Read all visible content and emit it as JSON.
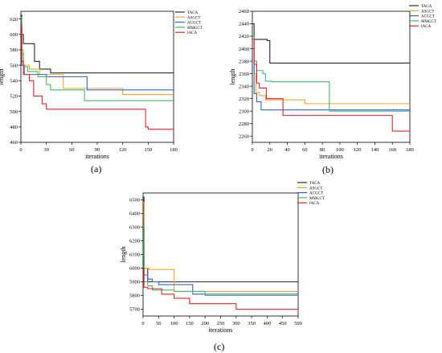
{
  "colors": {
    "TACA": "#2b2b2b",
    "ASGCT": "#f5a623",
    "ACGCT": "#2f66d6",
    "MMGCT": "#3dbb6a",
    "IACA": "#e8202a"
  },
  "chart_data": [
    {
      "type": "line",
      "caption": "(a)",
      "xlabel": "iterations",
      "ylabel": "length",
      "xlim": [
        0,
        180
      ],
      "ylim": [
        460,
        630
      ],
      "xticks": [
        0,
        30,
        60,
        90,
        120,
        150,
        180
      ],
      "yticks": [
        460,
        480,
        500,
        520,
        540,
        560,
        580,
        600,
        620
      ],
      "legend": "top-right",
      "grid": false,
      "series": [
        {
          "name": "TACA",
          "x": [
            0,
            1,
            3,
            10,
            16,
            22,
            35,
            180
          ],
          "y": [
            625,
            600,
            588,
            588,
            565,
            555,
            550,
            550
          ]
        },
        {
          "name": "ASGCT",
          "x": [
            0,
            1,
            3,
            10,
            22,
            45,
            50,
            75,
            120,
            180
          ],
          "y": [
            618,
            580,
            560,
            555,
            548,
            548,
            530,
            530,
            522,
            522
          ]
        },
        {
          "name": "ACGCT",
          "x": [
            0,
            1,
            4,
            20,
            30,
            75,
            78,
            180
          ],
          "y": [
            600,
            560,
            548,
            548,
            545,
            545,
            528,
            528
          ]
        },
        {
          "name": "MMGCT",
          "x": [
            0,
            1,
            3,
            8,
            20,
            30,
            35,
            75,
            180
          ],
          "y": [
            622,
            575,
            558,
            552,
            545,
            535,
            528,
            514,
            514
          ]
        },
        {
          "name": "IACA",
          "x": [
            0,
            1,
            3,
            10,
            15,
            25,
            30,
            145,
            147,
            150,
            180
          ],
          "y": [
            610,
            565,
            548,
            540,
            520,
            510,
            503,
            503,
            480,
            477,
            477
          ]
        }
      ]
    },
    {
      "type": "line",
      "caption": "(b)",
      "xlabel": "iterations",
      "ylabel": "length",
      "xlim": [
        0,
        180
      ],
      "ylim": [
        2250,
        2460
      ],
      "xticks": [
        0,
        20,
        40,
        60,
        80,
        100,
        120,
        140,
        160,
        180
      ],
      "yticks": [
        2260,
        2280,
        2300,
        2320,
        2340,
        2360,
        2380,
        2400,
        2420,
        2440,
        2460
      ],
      "legend": "top-right",
      "grid": false,
      "series": [
        {
          "name": "TACA",
          "x": [
            0,
            2,
            17,
            20,
            180
          ],
          "y": [
            2440,
            2415,
            2413,
            2377,
            2377
          ]
        },
        {
          "name": "ASGCT",
          "x": [
            0,
            2,
            4,
            8,
            15,
            60,
            180
          ],
          "y": [
            2410,
            2360,
            2330,
            2325,
            2318,
            2312,
            2312
          ]
        },
        {
          "name": "ACGCT",
          "x": [
            0,
            2,
            5,
            10,
            180
          ],
          "y": [
            2400,
            2328,
            2315,
            2302,
            2302
          ]
        },
        {
          "name": "MMGCT",
          "x": [
            0,
            2,
            5,
            12,
            15,
            22,
            88,
            180
          ],
          "y": [
            2420,
            2380,
            2365,
            2360,
            2348,
            2347,
            2300,
            2300
          ]
        },
        {
          "name": "IACA",
          "x": [
            0,
            2,
            5,
            8,
            16,
            35,
            160,
            180
          ],
          "y": [
            2415,
            2375,
            2345,
            2337,
            2320,
            2293,
            2268,
            2268
          ]
        }
      ]
    },
    {
      "type": "line",
      "caption": "(c)",
      "xlabel": "iterations",
      "ylabel": "length",
      "xlim": [
        0,
        500
      ],
      "ylim": [
        5650,
        6550
      ],
      "xticks": [
        0,
        50,
        100,
        150,
        200,
        250,
        300,
        350,
        400,
        450,
        500
      ],
      "yticks": [
        5700,
        5800,
        5900,
        6000,
        6100,
        6200,
        6300,
        6400,
        6500
      ],
      "legend": "top-right",
      "grid": false,
      "series": [
        {
          "name": "TACA",
          "x": [
            0,
            3,
            15,
            500
          ],
          "y": [
            6520,
            6000,
            5900,
            5900
          ]
        },
        {
          "name": "ASGCT",
          "x": [
            0,
            3,
            20,
            100,
            500
          ],
          "y": [
            6480,
            6000,
            5990,
            5830,
            5830
          ]
        },
        {
          "name": "ACGCT",
          "x": [
            0,
            3,
            15,
            30,
            50,
            160,
            500
          ],
          "y": [
            6100,
            5950,
            5920,
            5900,
            5880,
            5810,
            5810
          ]
        },
        {
          "name": "MMGCT",
          "x": [
            0,
            3,
            15,
            30,
            100,
            200,
            500
          ],
          "y": [
            6300,
            5900,
            5870,
            5840,
            5830,
            5800,
            5800
          ]
        },
        {
          "name": "IACA",
          "x": [
            0,
            3,
            15,
            60,
            100,
            150,
            300,
            500
          ],
          "y": [
            6000,
            5860,
            5850,
            5810,
            5780,
            5740,
            5700,
            5680
          ]
        }
      ]
    }
  ]
}
